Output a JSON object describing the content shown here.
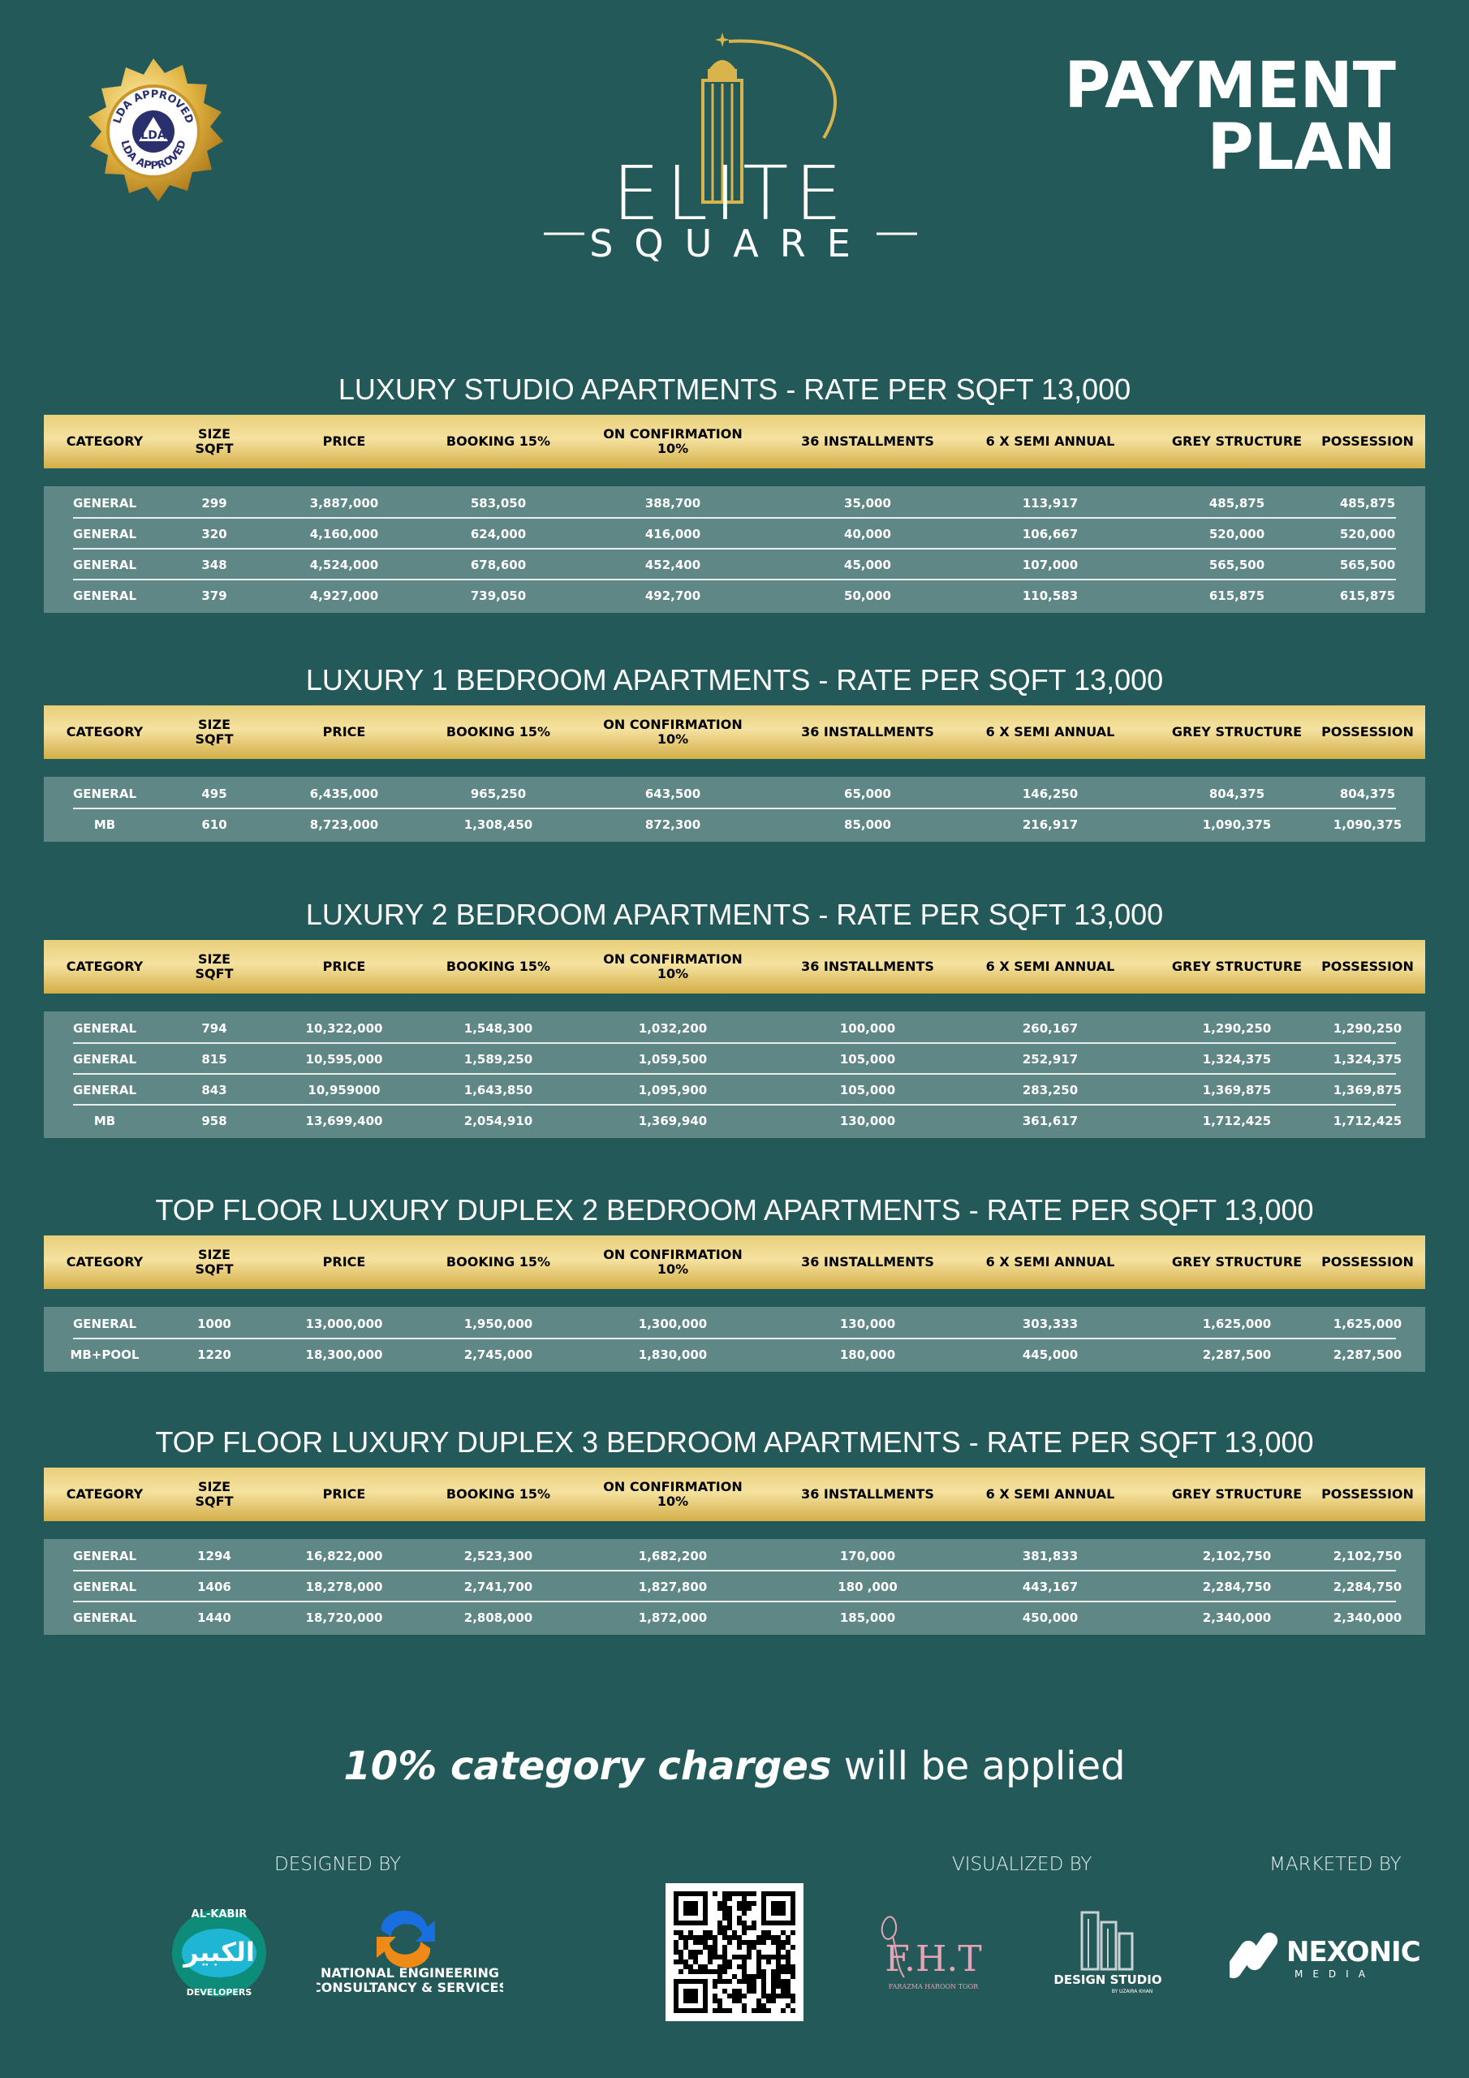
{
  "header": {
    "badge_text": "LDA APPROVED",
    "badge_mark": "LDA",
    "logo_word": "ELITE",
    "logo_sub": "SQUARE",
    "title_line1": "PAYMENT",
    "title_line2": "PLAN"
  },
  "columns": [
    "CATEGORY",
    "SIZE\nSQFT",
    "PRICE",
    "BOOKING 15%",
    "ON CONFIRMATION\n10%",
    "36 INSTALLMENTS",
    "6 X SEMI ANNUAL",
    "GREY STRUCTURE",
    "POSSESSION"
  ],
  "sections": [
    {
      "title": "LUXURY STUDIO APARTMENTS - RATE PER SQFT 13,000",
      "rows": [
        [
          "GENERAL",
          "299",
          "3,887,000",
          "583,050",
          "388,700",
          "35,000",
          "113,917",
          "485,875",
          "485,875"
        ],
        [
          "GENERAL",
          "320",
          "4,160,000",
          "624,000",
          "416,000",
          "40,000",
          "106,667",
          "520,000",
          "520,000"
        ],
        [
          "GENERAL",
          "348",
          "4,524,000",
          "678,600",
          "452,400",
          "45,000",
          "107,000",
          "565,500",
          "565,500"
        ],
        [
          "GENERAL",
          "379",
          "4,927,000",
          "739,050",
          "492,700",
          "50,000",
          "110,583",
          "615,875",
          "615,875"
        ]
      ]
    },
    {
      "title": "LUXURY 1 BEDROOM APARTMENTS - RATE PER SQFT 13,000",
      "rows": [
        [
          "GENERAL",
          "495",
          "6,435,000",
          "965,250",
          "643,500",
          "65,000",
          "146,250",
          "804,375",
          "804,375"
        ],
        [
          "MB",
          "610",
          "8,723,000",
          "1,308,450",
          "872,300",
          "85,000",
          "216,917",
          "1,090,375",
          "1,090,375"
        ]
      ]
    },
    {
      "title": "LUXURY 2 BEDROOM APARTMENTS - RATE PER SQFT 13,000",
      "rows": [
        [
          "GENERAL",
          "794",
          "10,322,000",
          "1,548,300",
          "1,032,200",
          "100,000",
          "260,167",
          "1,290,250",
          "1,290,250"
        ],
        [
          "GENERAL",
          "815",
          "10,595,000",
          "1,589,250",
          "1,059,500",
          "105,000",
          "252,917",
          "1,324,375",
          "1,324,375"
        ],
        [
          "GENERAL",
          "843",
          "10,959000",
          "1,643,850",
          "1,095,900",
          "105,000",
          "283,250",
          "1,369,875",
          "1,369,875"
        ],
        [
          "MB",
          "958",
          "13,699,400",
          "2,054,910",
          "1,369,940",
          "130,000",
          "361,617",
          "1,712,425",
          "1,712,425"
        ]
      ]
    },
    {
      "title": "TOP FLOOR LUXURY DUPLEX 2 BEDROOM APARTMENTS - RATE PER SQFT 13,000",
      "rows": [
        [
          "GENERAL",
          "1000",
          "13,000,000",
          "1,950,000",
          "1,300,000",
          "130,000",
          "303,333",
          "1,625,000",
          "1,625,000"
        ],
        [
          "MB+POOL",
          "1220",
          "18,300,000",
          "2,745,000",
          "1,830,000",
          "180,000",
          "445,000",
          "2,287,500",
          "2,287,500"
        ]
      ]
    },
    {
      "title": "TOP FLOOR LUXURY DUPLEX 3 BEDROOM APARTMENTS - RATE PER SQFT 13,000",
      "rows": [
        [
          "GENERAL",
          "1294",
          "16,822,000",
          "2,523,300",
          "1,682,200",
          "170,000",
          "381,833",
          "2,102,750",
          "2,102,750"
        ],
        [
          "GENERAL",
          "1406",
          "18,278,000",
          "2,741,700",
          "1,827,800",
          "180 ,000",
          "443,167",
          "2,284,750",
          "2,284,750"
        ],
        [
          "GENERAL",
          "1440",
          "18,720,000",
          "2,808,000",
          "1,872,000",
          "185,000",
          "450,000",
          "2,340,000",
          "2,340,000"
        ]
      ]
    }
  ],
  "footer": {
    "charges_em": "10% category charges",
    "charges_rest": " will be applied",
    "designed_by": "DESIGNED BY",
    "visualized_by": "VISUALIZED BY",
    "marketed_by": "MARKETED BY",
    "alkabir_top": "AL-KABIR",
    "alkabir_arabic": "الكبير",
    "alkabir_bottom": "DEVELOPERS",
    "necs_line1": "NATIONAL ENGINEERING",
    "necs_line2": "CONSULTANCY & SERVICES",
    "fht_mark": "F.H.T",
    "fht_name": "FARAZMA HAROON TOOR",
    "ds_name": "DESIGN STUDIO",
    "ds_sub": "BY UZAIRA KHAN",
    "nexonic": "NEXONIC",
    "nexonic_sub": "MEDIA"
  },
  "colors": {
    "background": "#235a59",
    "header_gold": "#e2c468",
    "row_panel": "#5f8785"
  }
}
